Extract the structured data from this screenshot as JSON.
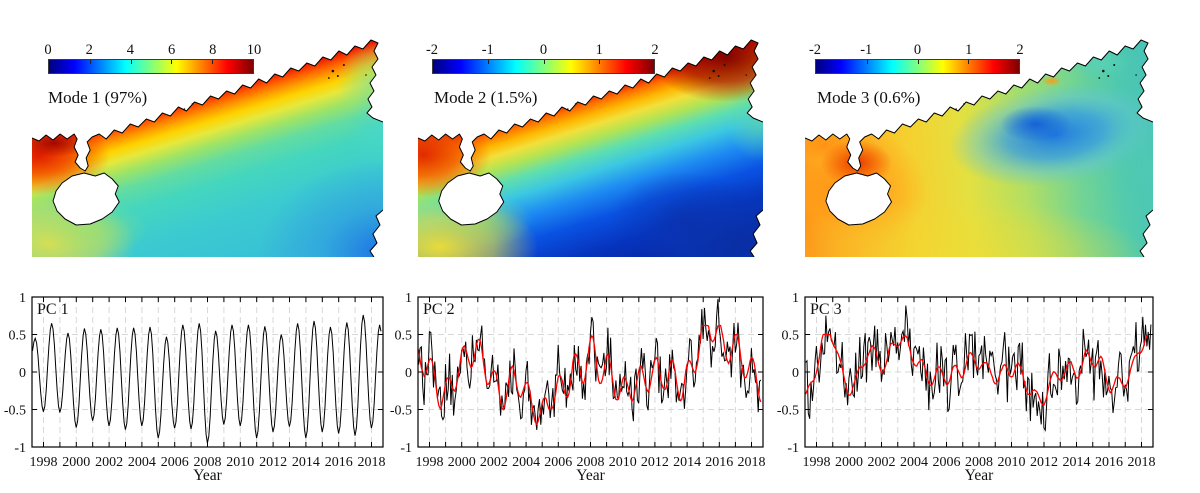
{
  "maps": [
    {
      "label": "Mode 1 (97%)",
      "colorbar": {
        "range": [
          0,
          10
        ],
        "tick_labels": [
          "0",
          "2",
          "4",
          "6",
          "8",
          "10"
        ],
        "colormap": "jet"
      }
    },
    {
      "label": "Mode 2 (1.5%)",
      "colorbar": {
        "range": [
          -2,
          2
        ],
        "tick_labels": [
          "-2",
          "-1",
          "0",
          "1",
          "2"
        ],
        "colormap": "jet"
      }
    },
    {
      "label": "Mode 3 (0.6%)",
      "colorbar": {
        "range": [
          -2,
          2
        ],
        "tick_labels": [
          "-2",
          "-1",
          "0",
          "1",
          "2"
        ],
        "colormap": "jet"
      }
    }
  ],
  "colors": {
    "raw_line": "#000000",
    "smoothed_line": "#ff0000",
    "grid": "#d8d8d8",
    "axis": "#000000"
  },
  "chart_data": [
    {
      "type": "heatmap",
      "title": "Mode 1 (97%)",
      "colormap": "jet",
      "range": [
        0,
        10
      ],
      "colorbar_ticks": [
        0,
        2,
        4,
        6,
        8,
        10
      ],
      "pattern": "EOF spatial mode: highest values 8-10 (dark red) in a band along the mainland coast and in the western gulf, 5-7 (orange-yellow) just offshore, 3-4 (cyan-green) over most of the open sea, 1-2 (blue) in the far southeast corner; white land with black coastline, island in the southwest"
    },
    {
      "type": "heatmap",
      "title": "Mode 2 (1.5%)",
      "colormap": "jet",
      "range": [
        -2,
        2
      ],
      "colorbar_ticks": [
        -2,
        -1,
        0,
        1,
        2
      ],
      "pattern": "EOF spatial mode: strong positive 1-2 (red, darkest at northeast coast) along the coast, 0-1 (yellow) in a diagonal mid-shelf band, negative -1 to -2 (blue to dark blue) over the deep southeastern basin, yellow in the southwest"
    },
    {
      "type": "heatmap",
      "title": "Mode 3 (0.6%)",
      "colormap": "jet",
      "range": [
        -2,
        2
      ],
      "colorbar_ticks": [
        -2,
        -1,
        0,
        1,
        2
      ],
      "pattern": "EOF spatial mode: positive 0.5-1.5 (orange-red) in the west around the island and peninsula, near-zero yellow-green across the south, negative -0.5 to -1.5 (blue patch) in the upper-central/eastern offshore area, cyan toward the eastern boundary with a small orange spot on the upper coast"
    },
    {
      "type": "line",
      "panel_label": "PC 1",
      "xlabel": "Year",
      "xlim": [
        1997.33,
        2018.62
      ],
      "ylim": [
        -1,
        1
      ],
      "xticks_labeled": [
        1998,
        2000,
        2002,
        2004,
        2006,
        2008,
        2010,
        2012,
        2014,
        2016,
        2018
      ],
      "xticks_minor": [
        1998,
        1999,
        2000,
        2001,
        2002,
        2003,
        2004,
        2005,
        2006,
        2007,
        2008,
        2009,
        2010,
        2011,
        2012,
        2013,
        2014,
        2015,
        2016,
        2017,
        2018
      ],
      "yticks": [
        -1,
        -0.5,
        0,
        0.5,
        1
      ],
      "ytick_labels": [
        "-1",
        "-0.5",
        "0",
        "0.5",
        "1"
      ],
      "grid_h": [
        -0.5,
        0,
        0.5
      ],
      "grid": "dashed",
      "series": [
        {
          "name": "PC1 monthly",
          "color": "#000000",
          "width": 1,
          "kind": "seasonal",
          "year0": 1997,
          "peaks": [
            0.45,
            0.65,
            0.52,
            0.58,
            0.57,
            0.59,
            0.59,
            0.6,
            0.47,
            0.63,
            0.65,
            0.55,
            0.63,
            0.63,
            0.61,
            0.5,
            0.65,
            0.68,
            0.6,
            0.66,
            0.76,
            0.63
          ],
          "troughs": [
            -0.2,
            -0.53,
            -0.54,
            -0.74,
            -0.65,
            -0.72,
            -0.77,
            -0.72,
            -0.88,
            -0.75,
            -0.76,
            -0.95,
            -0.7,
            -0.72,
            -0.88,
            -0.8,
            -0.73,
            -0.88,
            -0.8,
            -0.82,
            -0.85,
            -0.75,
            -0.8
          ]
        }
      ]
    },
    {
      "type": "line",
      "panel_label": "PC 2",
      "xlabel": "Year",
      "xlim": [
        1997.33,
        2018.62
      ],
      "ylim": [
        -1,
        1
      ],
      "xticks_labeled": [
        1998,
        2000,
        2002,
        2004,
        2006,
        2008,
        2010,
        2012,
        2014,
        2016,
        2018
      ],
      "xticks_minor": [
        1998,
        1999,
        2000,
        2001,
        2002,
        2003,
        2004,
        2005,
        2006,
        2007,
        2008,
        2009,
        2010,
        2011,
        2012,
        2013,
        2014,
        2015,
        2016,
        2017,
        2018
      ],
      "yticks": [
        -1,
        -0.5,
        0,
        0.5,
        1
      ],
      "ytick_labels": [
        "-1",
        "-0.5",
        "0",
        "0.5",
        "1"
      ],
      "grid_h": [
        -0.5,
        0,
        0.5
      ],
      "grid": "dashed",
      "series": [
        {
          "name": "PC2 monthly",
          "color": "#000000",
          "width": 1,
          "kind": "noisy",
          "range": [
            -0.9,
            1.0
          ]
        },
        {
          "name": "PC2 smoothed",
          "color": "#ff0000",
          "width": 1.3,
          "kind": "smoothed",
          "range": [
            -0.76,
            0.6
          ]
        }
      ],
      "gen": {
        "seed": 123457,
        "slow_window": 9,
        "slow_amp": 0.4,
        "annual_amp": 0.2,
        "annual_phase": 0.08,
        "noise_amp": 0.33,
        "red_clip": [
          -0.76,
          0.62
        ],
        "black_max": 0.99
      }
    },
    {
      "type": "line",
      "panel_label": "PC 3",
      "xlabel": "Year",
      "xlim": [
        1997.33,
        2018.62
      ],
      "ylim": [
        -1,
        1
      ],
      "xticks_labeled": [
        1998,
        2000,
        2002,
        2004,
        2006,
        2008,
        2010,
        2012,
        2014,
        2016,
        2018
      ],
      "xticks_minor": [
        1998,
        1999,
        2000,
        2001,
        2002,
        2003,
        2004,
        2005,
        2006,
        2007,
        2008,
        2009,
        2010,
        2011,
        2012,
        2013,
        2014,
        2015,
        2016,
        2017,
        2018
      ],
      "yticks": [
        -1,
        -0.5,
        0,
        0.5,
        1
      ],
      "ytick_labels": [
        "-1",
        "-0.5",
        "0",
        "0.5",
        "1"
      ],
      "grid_h": [
        -0.5,
        0,
        0.5
      ],
      "grid": "dashed",
      "series": [
        {
          "name": "PC3 monthly",
          "color": "#000000",
          "width": 1,
          "kind": "noisy",
          "range": [
            -0.95,
            0.9
          ]
        },
        {
          "name": "PC3 smoothed",
          "color": "#ff0000",
          "width": 1.3,
          "kind": "smoothed",
          "range": [
            -0.52,
            0.5
          ]
        }
      ],
      "gen": {
        "seed": 987651,
        "slow_window": 7,
        "slow_amp": 0.36,
        "annual_amp": 0.1,
        "annual_phase": 0.55,
        "noise_amp": 0.36,
        "red_clip": [
          -0.52,
          0.5
        ],
        "black_max": 0.93
      }
    }
  ]
}
